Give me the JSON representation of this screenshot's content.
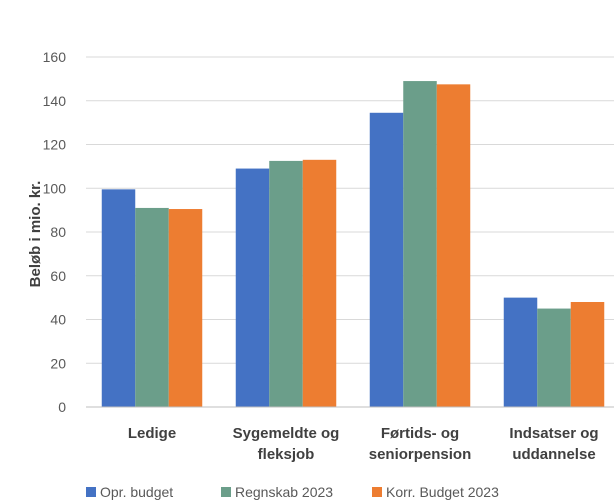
{
  "chart_data": {
    "type": "bar",
    "title": "",
    "xlabel": "",
    "ylabel": "Beløb i mio. kr.",
    "ylim": [
      0,
      160
    ],
    "yticks": [
      0,
      20,
      40,
      60,
      80,
      100,
      120,
      140,
      160
    ],
    "grid": true,
    "legend_position": "bottom",
    "categories": [
      [
        "Ledige"
      ],
      [
        "Sygemeldte og",
        "fleksjob"
      ],
      [
        "Førtids- og",
        "seniorpension"
      ],
      [
        "Indsatser og",
        "uddannelse"
      ]
    ],
    "series": [
      {
        "name": "Opr. budget",
        "color": "#4472C4",
        "values": [
          99.5,
          109,
          134.5,
          50
        ]
      },
      {
        "name": "Regnskab 2023",
        "color": "#6B9E8A",
        "values": [
          91,
          112.5,
          149,
          45
        ]
      },
      {
        "name": "Korr. Budget 2023",
        "color": "#ED7D31",
        "values": [
          90.5,
          113,
          147.5,
          48
        ]
      }
    ]
  }
}
